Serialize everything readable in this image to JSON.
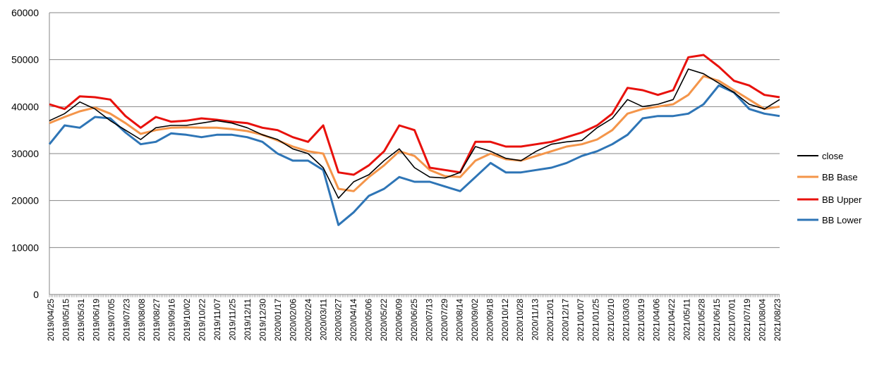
{
  "chart_data": {
    "type": "line",
    "title": "",
    "xlabel": "",
    "ylabel": "",
    "ylim": [
      0,
      60000
    ],
    "yticks": [
      "0",
      "10000",
      "20000",
      "30000",
      "40000",
      "50000",
      "60000"
    ],
    "grid": "horizontal",
    "legend_position": "right",
    "x_tick_labels": [
      "2019/04/25",
      "2019/05/15",
      "2019/05/31",
      "2019/06/19",
      "2019/07/05",
      "2019/07/23",
      "2019/08/08",
      "2019/08/27",
      "2019/09/16",
      "2019/10/02",
      "2019/10/22",
      "2019/11/07",
      "2019/11/25",
      "2019/12/11",
      "2019/12/30",
      "2020/01/17",
      "2020/02/06",
      "2020/02/24",
      "2020/03/11",
      "2020/03/27",
      "2020/04/14",
      "2020/05/06",
      "2020/05/22",
      "2020/06/09",
      "2020/06/25",
      "2020/07/13",
      "2020/07/29",
      "2020/08/14",
      "2020/09/02",
      "2020/09/18",
      "2020/10/12",
      "2020/10/28",
      "2020/11/13",
      "2020/12/01",
      "2020/12/17",
      "2021/01/07",
      "2021/01/25",
      "2021/02/10",
      "2021/03/03",
      "2021/03/19",
      "2021/04/06",
      "2021/04/22",
      "2021/05/11",
      "2021/05/28",
      "2021/06/15",
      "2021/07/01",
      "2021/07/19",
      "2021/08/04",
      "2021/08/23"
    ],
    "series": [
      {
        "name": "close",
        "color": "#000000",
        "values": [
          37000,
          38500,
          41000,
          39500,
          37000,
          35000,
          33000,
          35500,
          36000,
          36000,
          36500,
          37000,
          36500,
          35500,
          34000,
          33000,
          31000,
          30000,
          27000,
          20500,
          24000,
          25500,
          28500,
          31000,
          27000,
          25000,
          24800,
          26000,
          31500,
          30500,
          29000,
          28500,
          30500,
          32000,
          32500,
          32800,
          35500,
          37500,
          41500,
          40000,
          40500,
          41500,
          48000,
          47000,
          45000,
          43000,
          40500,
          39500,
          41500
        ]
      },
      {
        "name": "BB Base",
        "color": "#F4954A",
        "values": [
          36500,
          37800,
          39000,
          39800,
          38500,
          36500,
          34200,
          35000,
          35500,
          35600,
          35500,
          35500,
          35200,
          34800,
          34000,
          32800,
          31500,
          30500,
          30000,
          22500,
          22000,
          25000,
          27500,
          30500,
          29500,
          26500,
          25200,
          25000,
          28500,
          30000,
          28800,
          28500,
          29500,
          30500,
          31500,
          32000,
          33000,
          35000,
          38500,
          39500,
          40000,
          40500,
          42500,
          46500,
          45500,
          43500,
          41500,
          39500,
          40000
        ]
      },
      {
        "name": "BB Upper",
        "color": "#E8110C",
        "values": [
          40500,
          39500,
          42200,
          42000,
          41500,
          38000,
          35500,
          37800,
          36800,
          37000,
          37500,
          37200,
          36800,
          36500,
          35500,
          35000,
          33500,
          32500,
          36000,
          26000,
          25500,
          27500,
          30500,
          36000,
          35000,
          27000,
          26500,
          26000,
          32500,
          32500,
          31500,
          31500,
          32000,
          32500,
          33500,
          34500,
          36000,
          38500,
          44000,
          43500,
          42500,
          43500,
          50500,
          51000,
          48500,
          45500,
          44500,
          42500,
          42000
        ]
      },
      {
        "name": "BB Lower",
        "color": "#2E75B6",
        "values": [
          32000,
          36000,
          35500,
          37800,
          37500,
          34500,
          32000,
          32500,
          34300,
          34000,
          33500,
          34000,
          34000,
          33500,
          32500,
          30000,
          28500,
          28500,
          26500,
          14800,
          17500,
          21000,
          22500,
          25000,
          24000,
          24000,
          23000,
          22000,
          25000,
          28000,
          26000,
          26000,
          26500,
          27000,
          28000,
          29500,
          30500,
          32000,
          34000,
          37500,
          38000,
          38000,
          38500,
          40500,
          44500,
          43000,
          39500,
          38500,
          38000
        ]
      }
    ]
  }
}
